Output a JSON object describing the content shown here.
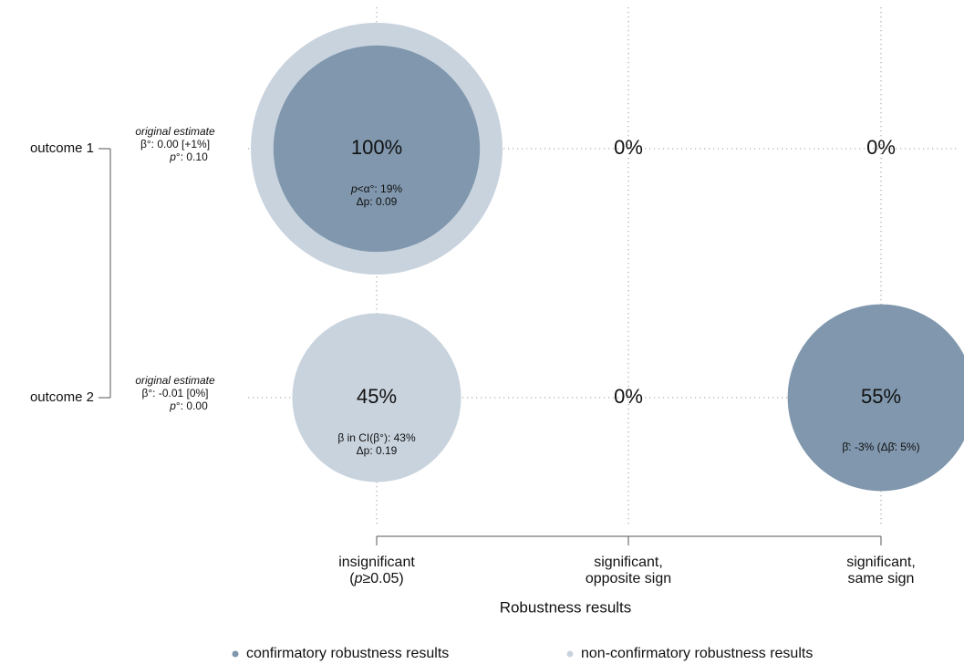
{
  "chart_data": {
    "type": "bubble",
    "title": "",
    "xlabel": "Robustness results",
    "categories": [
      "insignificant\n(p≥0.05)",
      "significant,\nopposite sign",
      "significant,\nsame sign"
    ],
    "category_lines": [
      [
        {
          "t": "insignificant"
        },
        {
          "t": "(",
          "i": false
        },
        {
          "t": "p",
          "i": true
        },
        {
          "t": "≥0.05)",
          "i": false
        }
      ],
      [
        {
          "t": "significant,"
        },
        {
          "t": "opposite sign"
        }
      ],
      [
        {
          "t": "significant,"
        },
        {
          "t": "same sign"
        }
      ]
    ],
    "category_row2": [
      null,
      null,
      null
    ],
    "rows": [
      {
        "name": "outcome 1",
        "original_estimate": {
          "label": "original estimate",
          "beta": "β°: 0.00 [+1%]",
          "p": "p°: 0.10"
        },
        "cells": [
          {
            "percent": 100,
            "label": "100%",
            "confirmatory_share": 1.0,
            "notes": [
              "p<α°: 19%",
              "Δp: 0.09"
            ]
          },
          {
            "percent": 0,
            "label": "0%",
            "notes": []
          },
          {
            "percent": 0,
            "label": "0%",
            "notes": []
          }
        ]
      },
      {
        "name": "outcome 2",
        "original_estimate": {
          "label": "original estimate",
          "beta": "β°: -0.01 [0%]",
          "p": "p°: 0.00"
        },
        "cells": [
          {
            "percent": 45,
            "label": "45%",
            "confirmatory_share": 0.0,
            "notes": [
              "β in CI(β°): 43%",
              "Δp: 0.19"
            ]
          },
          {
            "percent": 0,
            "label": "0%",
            "notes": []
          },
          {
            "percent": 55,
            "label": "55%",
            "confirmatory_share": 1.0,
            "notes": [
              "β̄: -3% (Δβ̄: 5%)"
            ]
          }
        ]
      }
    ],
    "legend": {
      "position": "bottom",
      "items": [
        {
          "label": "confirmatory robustness results",
          "color": "#8097ad"
        },
        {
          "label": "non-confirmatory robustness results",
          "color": "#c9d3de"
        }
      ]
    },
    "colors": {
      "confirmatory": "#8097ad",
      "non_confirmatory": "#c9d3de",
      "axis": "#555555",
      "grid": "#9a9a9a"
    },
    "grid": true
  }
}
